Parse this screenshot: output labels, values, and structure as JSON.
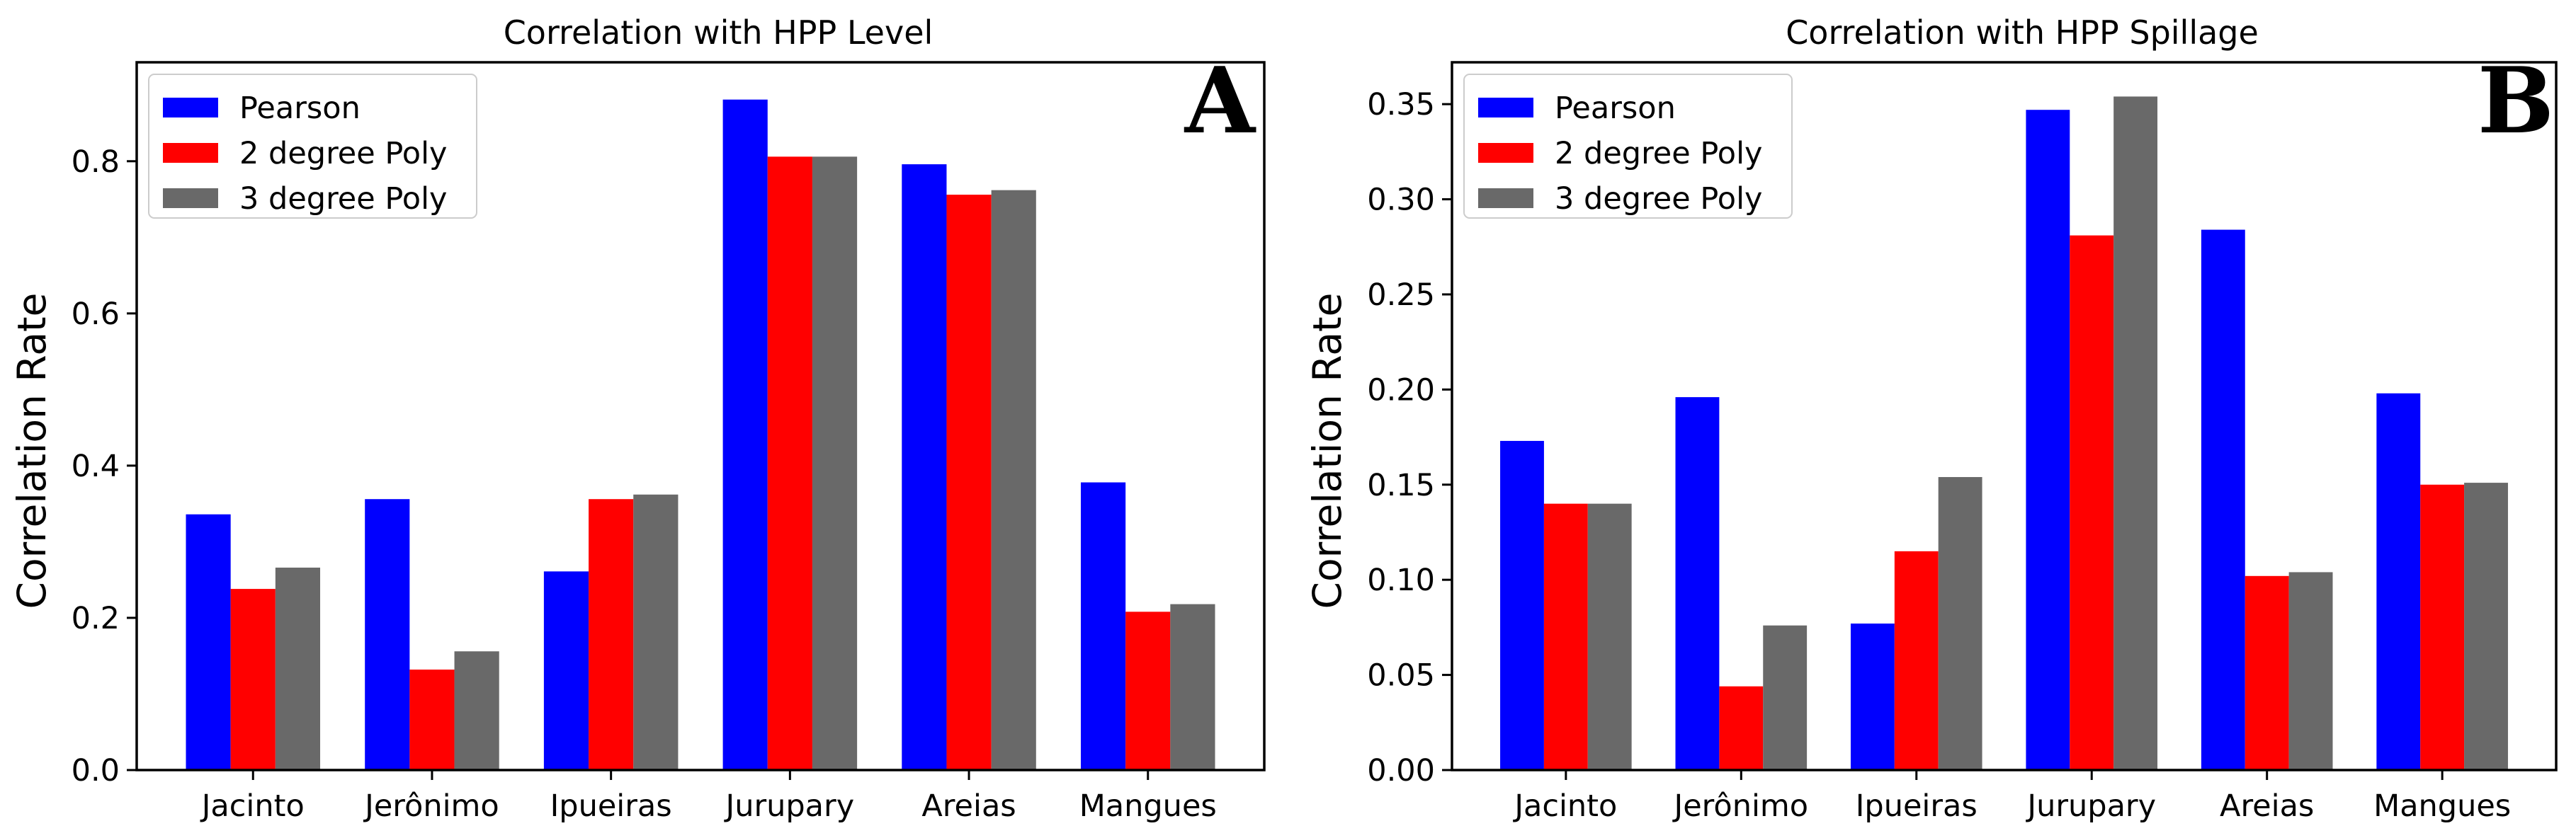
{
  "chart_data": [
    {
      "type": "bar",
      "panel": "A",
      "title": "Correlation with HPP Level",
      "xlabel": "",
      "ylabel": "Correlation Rate",
      "categories": [
        "Jacinto",
        "Jerônimo",
        "Ipueiras",
        "Jurupary",
        "Areias",
        "Mangues"
      ],
      "series": [
        {
          "name": "Pearson",
          "color": "#0000ff",
          "values": [
            0.336,
            0.356,
            0.261,
            0.881,
            0.796,
            0.378
          ]
        },
        {
          "name": "2 degree Poly",
          "color": "#ff0000",
          "values": [
            0.238,
            0.132,
            0.356,
            0.806,
            0.756,
            0.208
          ]
        },
        {
          "name": "3 degree Poly",
          "color": "#696969",
          "values": [
            0.266,
            0.156,
            0.362,
            0.806,
            0.762,
            0.218
          ]
        }
      ],
      "ylim": [
        0,
        0.93
      ],
      "yticks": [
        0.0,
        0.2,
        0.4,
        0.6,
        0.8
      ],
      "ytick_labels": [
        "0.0",
        "0.2",
        "0.4",
        "0.6",
        "0.8"
      ],
      "legend_position": "top-left",
      "grid": false
    },
    {
      "type": "bar",
      "panel": "B",
      "title": "Correlation with HPP Spillage",
      "xlabel": "",
      "ylabel": "Correlation Rate",
      "categories": [
        "Jacinto",
        "Jerônimo",
        "Ipueiras",
        "Jurupary",
        "Areias",
        "Mangues"
      ],
      "series": [
        {
          "name": "Pearson",
          "color": "#0000ff",
          "values": [
            0.173,
            0.196,
            0.077,
            0.347,
            0.284,
            0.198
          ]
        },
        {
          "name": "2 degree Poly",
          "color": "#ff0000",
          "values": [
            0.14,
            0.044,
            0.115,
            0.281,
            0.102,
            0.15
          ]
        },
        {
          "name": "3 degree Poly",
          "color": "#696969",
          "values": [
            0.14,
            0.076,
            0.154,
            0.354,
            0.104,
            0.151
          ]
        }
      ],
      "ylim": [
        0,
        0.372
      ],
      "yticks": [
        0.0,
        0.05,
        0.1,
        0.15,
        0.2,
        0.25,
        0.3,
        0.35
      ],
      "ytick_labels": [
        "0.00",
        "0.05",
        "0.10",
        "0.15",
        "0.20",
        "0.25",
        "0.30",
        "0.35"
      ],
      "legend_position": "top-left",
      "grid": false
    }
  ]
}
